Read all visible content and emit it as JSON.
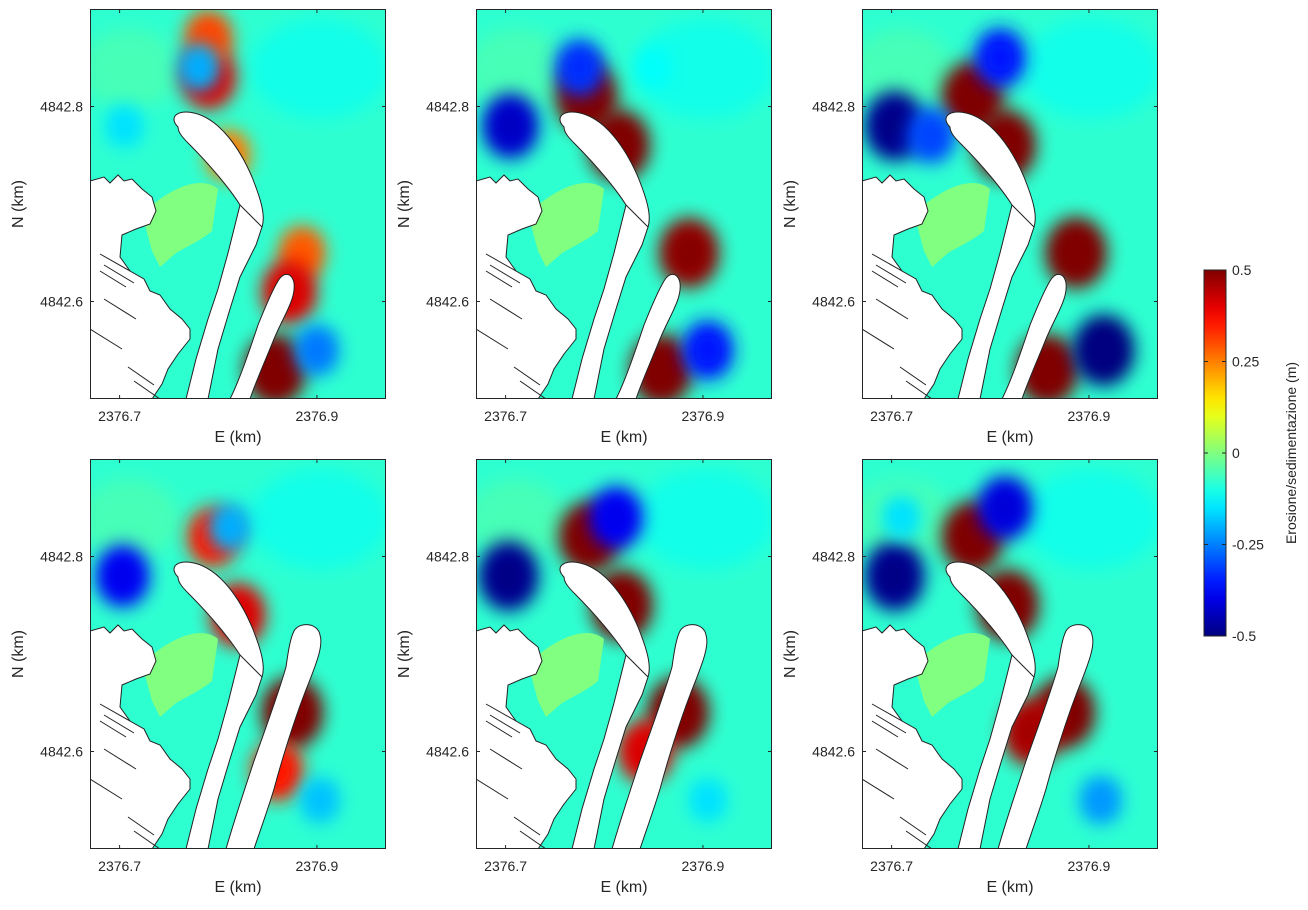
{
  "chart_data": {
    "type": "heatmap",
    "layout_grid": "2 rows x 3 columns of map panels sharing one colorbar on the right",
    "colormap": "jet",
    "mask_color": "#80ff80",
    "land_color": "#ffffff",
    "x_axis": {
      "label": "E (km)",
      "ticks": [
        2376.7,
        2376.9
      ],
      "tick_labels": [
        "2376.7",
        "2376.9"
      ],
      "range": [
        2376.67,
        2376.97
      ]
    },
    "y_axis": {
      "label": "N (km)",
      "ticks": [
        4842.6,
        4842.8
      ],
      "tick_labels": [
        "4842.6",
        "4842.8"
      ],
      "range": [
        4842.5,
        4842.9
      ]
    },
    "colorbar": {
      "label": "Erosione/sedimentazione (m)",
      "ticks": [
        0.5,
        0.25,
        0,
        -0.25,
        -0.5
      ],
      "tick_labels": [
        "0.5",
        "0.25",
        "0",
        "-0.25",
        "-0.5"
      ],
      "range": [
        -0.5,
        0.5
      ]
    },
    "panels": [
      {
        "row": 1,
        "col": 1,
        "features": [
          {
            "x": 2376.79,
            "y": 4842.83,
            "value": 0.4
          },
          {
            "x": 2376.79,
            "y": 4842.87,
            "value": 0.3
          },
          {
            "x": 2376.81,
            "y": 4842.75,
            "value": 0.25
          },
          {
            "x": 2376.885,
            "y": 4842.65,
            "value": 0.28
          },
          {
            "x": 2376.872,
            "y": 4842.61,
            "value": 0.4
          },
          {
            "x": 2376.858,
            "y": 4842.53,
            "value": 0.5
          },
          {
            "x": 2376.9,
            "y": 4842.55,
            "value": -0.25
          },
          {
            "x": 2376.78,
            "y": 4842.84,
            "value": -0.2
          },
          {
            "x": 2376.705,
            "y": 4842.78,
            "value": -0.15
          }
        ]
      },
      {
        "row": 1,
        "col": 2,
        "features": [
          {
            "x": 2376.782,
            "y": 4842.81,
            "value": 0.5
          },
          {
            "x": 2376.815,
            "y": 4842.76,
            "value": 0.5
          },
          {
            "x": 2376.886,
            "y": 4842.65,
            "value": 0.48
          },
          {
            "x": 2376.858,
            "y": 4842.53,
            "value": 0.5
          },
          {
            "x": 2376.905,
            "y": 4842.55,
            "value": -0.35
          },
          {
            "x": 2376.775,
            "y": 4842.84,
            "value": -0.32
          },
          {
            "x": 2376.705,
            "y": 4842.78,
            "value": -0.42
          },
          {
            "x": 2376.85,
            "y": 4842.84,
            "value": -0.12
          }
        ]
      },
      {
        "row": 1,
        "col": 3,
        "features": [
          {
            "x": 2376.782,
            "y": 4842.81,
            "value": 0.5
          },
          {
            "x": 2376.815,
            "y": 4842.76,
            "value": 0.5
          },
          {
            "x": 2376.887,
            "y": 4842.65,
            "value": 0.5
          },
          {
            "x": 2376.858,
            "y": 4842.53,
            "value": 0.5
          },
          {
            "x": 2376.915,
            "y": 4842.55,
            "value": -0.5
          },
          {
            "x": 2376.81,
            "y": 4842.85,
            "value": -0.35
          },
          {
            "x": 2376.703,
            "y": 4842.78,
            "value": -0.48
          },
          {
            "x": 2376.74,
            "y": 4842.77,
            "value": -0.3
          }
        ]
      },
      {
        "row": 2,
        "col": 1,
        "features": [
          {
            "x": 2376.795,
            "y": 4842.82,
            "value": 0.35
          },
          {
            "x": 2376.82,
            "y": 4842.74,
            "value": 0.4
          },
          {
            "x": 2376.875,
            "y": 4842.64,
            "value": 0.5
          },
          {
            "x": 2376.86,
            "y": 4842.58,
            "value": 0.35
          },
          {
            "x": 2376.903,
            "y": 4842.55,
            "value": -0.18
          },
          {
            "x": 2376.812,
            "y": 4842.83,
            "value": -0.2
          },
          {
            "x": 2376.703,
            "y": 4842.78,
            "value": -0.38
          }
        ]
      },
      {
        "row": 2,
        "col": 2,
        "features": [
          {
            "x": 2376.785,
            "y": 4842.82,
            "value": 0.5
          },
          {
            "x": 2376.818,
            "y": 4842.75,
            "value": 0.5
          },
          {
            "x": 2376.875,
            "y": 4842.64,
            "value": 0.5
          },
          {
            "x": 2376.842,
            "y": 4842.6,
            "value": 0.4
          },
          {
            "x": 2376.905,
            "y": 4842.55,
            "value": -0.15
          },
          {
            "x": 2376.812,
            "y": 4842.84,
            "value": -0.38
          },
          {
            "x": 2376.703,
            "y": 4842.78,
            "value": -0.48
          }
        ]
      },
      {
        "row": 2,
        "col": 3,
        "features": [
          {
            "x": 2376.782,
            "y": 4842.82,
            "value": 0.5
          },
          {
            "x": 2376.818,
            "y": 4842.75,
            "value": 0.5
          },
          {
            "x": 2376.875,
            "y": 4842.64,
            "value": 0.5
          },
          {
            "x": 2376.842,
            "y": 4842.62,
            "value": 0.45
          },
          {
            "x": 2376.912,
            "y": 4842.55,
            "value": -0.22
          },
          {
            "x": 2376.815,
            "y": 4842.85,
            "value": -0.4
          },
          {
            "x": 2376.703,
            "y": 4842.78,
            "value": -0.48
          },
          {
            "x": 2376.71,
            "y": 4842.84,
            "value": -0.15
          }
        ]
      }
    ]
  }
}
